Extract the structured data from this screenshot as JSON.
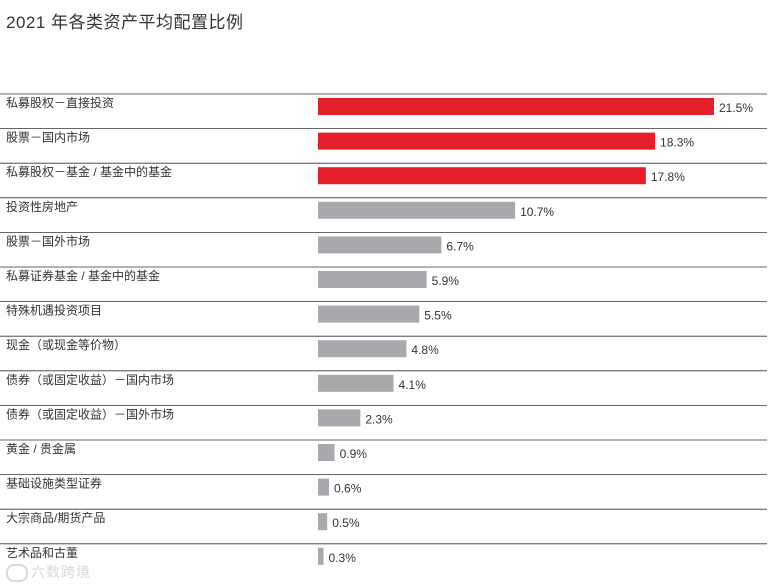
{
  "chart_data": {
    "type": "bar",
    "orientation": "horizontal",
    "title": "2021 年各类资产平均配置比例",
    "categories": [
      "私募股权－直接投资",
      "股票－国内市场",
      "私募股权－基金 / 基金中的基金",
      "投资性房地产",
      "股票－国外市场",
      "私募证券基金 / 基金中的基金",
      "特殊机遇投资项目",
      "现金（或现金等价物）",
      "债券（或固定收益）－国内市场",
      "债券（或固定收益）－国外市场",
      "黄金 / 贵金属",
      "基础设施类型证券",
      "大宗商品/期货产品",
      "艺术品和古董"
    ],
    "values": [
      21.5,
      18.3,
      17.8,
      10.7,
      6.7,
      5.9,
      5.5,
      4.8,
      4.1,
      2.3,
      0.9,
      0.6,
      0.5,
      0.3
    ],
    "value_labels": [
      "21.5%",
      "18.3%",
      "17.8%",
      "10.7%",
      "6.7%",
      "5.9%",
      "5.5%",
      "4.8%",
      "4.1%",
      "2.3%",
      "0.9%",
      "0.6%",
      "0.5%",
      "0.3%"
    ],
    "xlim": [
      0,
      21.5
    ],
    "highlight_count": 3,
    "colors": {
      "highlight": "#e3202a",
      "default": "#a7a9ac",
      "rule": "#333333"
    },
    "grid": false,
    "legend": "none"
  },
  "watermark": {
    "text": "六数跨境",
    "icon": "brand-logo-icon"
  }
}
